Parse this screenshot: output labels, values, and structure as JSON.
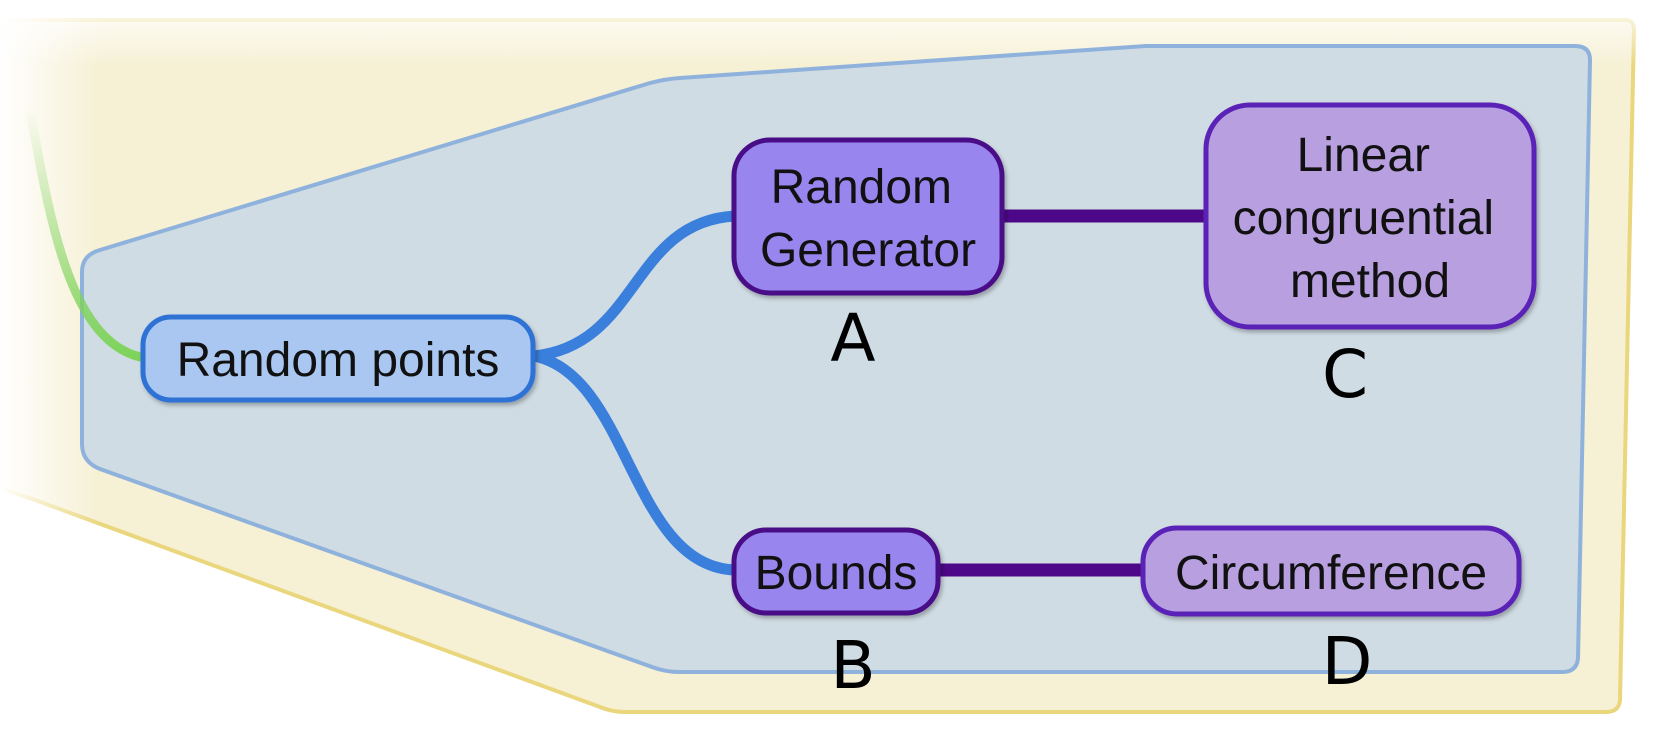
{
  "colors": {
    "outer_region_fill": "#f6f0d4",
    "outer_region_stroke": "#ead67c",
    "inner_region_fill": "#d0dce4",
    "inner_region_stroke": "#8fb2dd",
    "root_fill": "#a9c7f0",
    "root_stroke": "#2f72d6",
    "branch_blue": "#3a7fdc",
    "mid_fill": "#9886ee",
    "mid_stroke": "#4a0e87",
    "leaf_fill": "#b8a0e0",
    "leaf_stroke": "#5a21b6",
    "link_purple": "#4c0888",
    "incoming_green": "#7ed35a"
  },
  "diagram": {
    "root": {
      "label": "Random points"
    },
    "children": [
      {
        "label_lines": [
          "Random",
          "Generator"
        ],
        "marker": "A",
        "leaf": {
          "label_lines": [
            "Linear",
            "congruential",
            "method"
          ],
          "marker": "C"
        }
      },
      {
        "label_lines": [
          "Bounds"
        ],
        "marker": "B",
        "leaf": {
          "label_lines": [
            "Circumference"
          ],
          "marker": "D"
        }
      }
    ]
  }
}
